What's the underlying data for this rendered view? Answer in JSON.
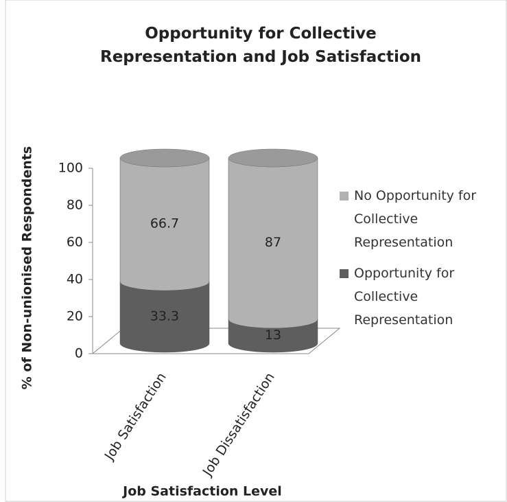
{
  "chart_data": {
    "type": "stacked_cylinder",
    "title": "Opportunity for Collective Representation and Job Satisfaction",
    "y_label": "% of Non-unionised Respondents",
    "x_label": "Job Satisfaction Level",
    "categories": [
      "Job Satisfaction",
      "Job Dissatisfaction"
    ],
    "series": [
      {
        "name": "Opportunity for Collective Representation",
        "color": "#5e5e5e",
        "values": [
          33.3,
          13
        ]
      },
      {
        "name": "No Opportunity for Collective Representation",
        "color": "#b2b2b2",
        "values": [
          66.7,
          87
        ]
      }
    ],
    "ylim": [
      0,
      100
    ],
    "yticks": [
      0,
      20,
      40,
      60,
      80,
      100
    ],
    "legend": "right"
  }
}
